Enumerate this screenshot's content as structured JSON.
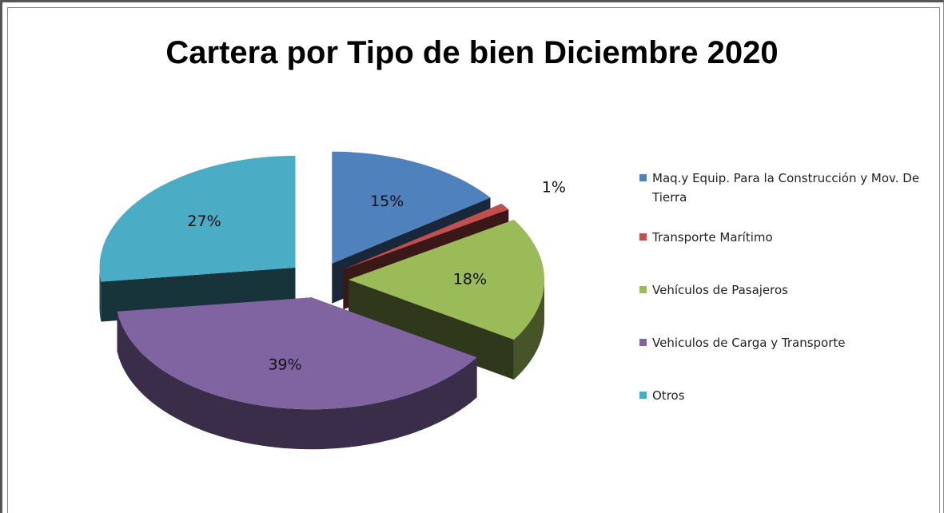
{
  "chart_data": {
    "type": "pie",
    "title": "Cartera por Tipo de bien Diciembre 2020",
    "categories": [
      "Maq.y Equip. Para la Construcción y Mov. De Tierra",
      "Transporte Marítimo",
      "Vehículos de Pasajeros",
      "Vehiculos de Carga y Transporte",
      "Otros"
    ],
    "values": [
      15,
      1,
      18,
      39,
      27
    ],
    "value_labels": [
      "15%",
      "1%",
      "18%",
      "39%",
      "27%"
    ],
    "colors": [
      "#4f81bd",
      "#c0504d",
      "#9bbb59",
      "#8064a2",
      "#4bacc6"
    ],
    "legend": "right"
  }
}
